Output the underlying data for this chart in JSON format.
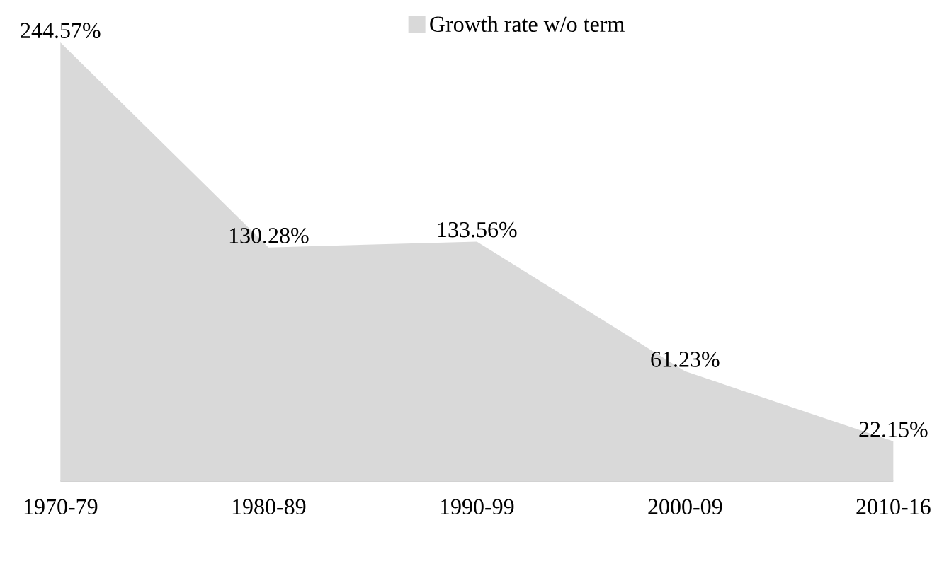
{
  "chart_data": {
    "type": "area",
    "categories": [
      "1970-79",
      "1980-89",
      "1990-99",
      "2000-09",
      "2010-16"
    ],
    "series": [
      {
        "name": "Growth rate w/o term",
        "color": "#d9d9d9",
        "values": [
          244.57,
          130.28,
          133.56,
          61.23,
          22.15
        ],
        "value_labels": [
          "244.57%",
          "130.28%",
          "133.56%",
          "61.23%",
          "22.15%"
        ]
      }
    ],
    "legend": "top"
  }
}
